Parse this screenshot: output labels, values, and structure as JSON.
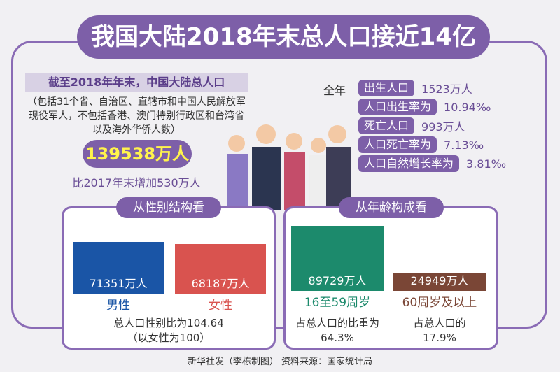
{
  "title": "我国大陆2018年末总人口接近14亿",
  "intro": {
    "heading": "截至2018年年末，中国大陆总人口",
    "note": "（包括31个省、自治区、直辖市和中国人民解放军现役军人，不包括香港、澳门特别行政区和台湾省以及海外华侨人数）",
    "total": "139538万人",
    "increase": "比2017年末增加530万人"
  },
  "stats": {
    "label": "全年",
    "items": [
      {
        "label": "出生人口",
        "value": "1523万人"
      },
      {
        "label": "人口出生率为",
        "value": "10.94‰"
      },
      {
        "label": "死亡人口",
        "value": "993万人"
      },
      {
        "label": "人口死亡率为",
        "value": "7.13‰"
      },
      {
        "label": "人口自然增长率为",
        "value": "3.81‰"
      }
    ]
  },
  "gender": {
    "heading": "从性别结构看",
    "bars": [
      {
        "name": "男性",
        "value": 71351,
        "label": "71351万人",
        "color": "#1a55a6"
      },
      {
        "name": "女性",
        "value": 68187,
        "label": "68187万人",
        "color": "#d9534f"
      }
    ],
    "note": [
      "总人口性别比为104.64",
      "（以女性为100）"
    ]
  },
  "age": {
    "heading": "从年龄构成看",
    "bars": [
      {
        "name": "16至59周岁",
        "value": 89729,
        "label": "89729万人",
        "color": "#1c8a6c",
        "share": "占总人口的比重为64.3%"
      },
      {
        "name": "60周岁及以上",
        "value": 24949,
        "label": "24949万人",
        "color": "#7a4636",
        "share": "占总人口的17.9%"
      }
    ]
  },
  "footer": "新华社发（李栋制图） 资料来源：国家统计局"
}
